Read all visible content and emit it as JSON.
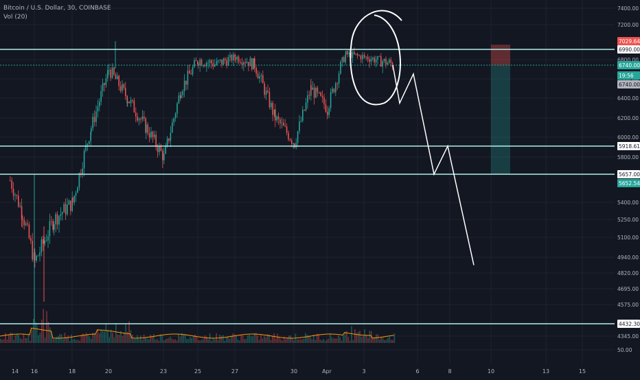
{
  "header": {
    "title": "Bitcoin / U.S. Dollar, 30, COINBASE",
    "indicator": "Vol (20)"
  },
  "colors": {
    "background": "#131722",
    "grid": "#1f2330",
    "up": "#26a69a",
    "down": "#ef5350",
    "levelLine": "#b2f0ea",
    "drawing": "#ffffff",
    "volumeMA": "#ff9800",
    "axisText": "#b2b5be"
  },
  "price_axis": {
    "ticks": [
      "7400.00",
      "7200.00",
      "6990.00",
      "6800.00",
      "6600.00",
      "6400.00",
      "6200.00",
      "6000.00",
      "5800.00",
      "5400.00",
      "5250.00",
      "5100.00",
      "4940.00",
      "4820.00",
      "4695.00",
      "4575.00",
      "4345.00",
      "50.00"
    ]
  },
  "price_labels": [
    {
      "text": "7029.64",
      "bg": "#ef5350",
      "fg": "#ffffff"
    },
    {
      "text": "6990.00",
      "bg": "#ffffff",
      "fg": "#131722"
    },
    {
      "text": "6740.00",
      "bg": "#26a69a",
      "fg": "#ffffff"
    },
    {
      "text": "19:56",
      "bg": "#26a69a",
      "fg": "#ffffff"
    },
    {
      "text": "6740.00",
      "bg": "#b2b5be",
      "fg": "#131722"
    },
    {
      "text": "5918.61",
      "bg": "#ffffff",
      "fg": "#131722"
    },
    {
      "text": "5657.00",
      "bg": "#ffffff",
      "fg": "#131722"
    },
    {
      "text": "5652.54",
      "bg": "#26a69a",
      "fg": "#ffffff"
    },
    {
      "text": "4432.30",
      "bg": "#ffffff",
      "fg": "#131722"
    }
  ],
  "time_axis": {
    "ticks": [
      "14",
      "16",
      "18",
      "20",
      "23",
      "25",
      "27",
      "30",
      "Apr",
      "3",
      "6",
      "8",
      "10",
      "13",
      "15"
    ]
  },
  "chart_data": {
    "type": "candlestick",
    "symbol": "Bitcoin / U.S. Dollar",
    "interval": "30",
    "exchange": "COINBASE",
    "levels": [
      6990,
      5918.61,
      5657,
      4432.3
    ],
    "price_labels": [
      7029.64,
      6990,
      6740,
      6740,
      5918.61,
      5657,
      5652.54,
      4432.3
    ],
    "position_tool": {
      "stop": 7029.64,
      "entry": 6740,
      "target": 5657
    },
    "price_path": [
      {
        "day": "14",
        "price": 5600
      },
      {
        "day": "15",
        "price": 5300
      },
      {
        "day": "16",
        "price": 4900
      },
      {
        "day": "17",
        "price": 5250
      },
      {
        "day": "18",
        "price": 5400
      },
      {
        "day": "19",
        "price": 6100
      },
      {
        "day": "20",
        "price": 6700
      },
      {
        "day": "21",
        "price": 6400
      },
      {
        "day": "22",
        "price": 6100
      },
      {
        "day": "23",
        "price": 5800
      },
      {
        "day": "24",
        "price": 6500
      },
      {
        "day": "25",
        "price": 6800
      },
      {
        "day": "26",
        "price": 6750
      },
      {
        "day": "27",
        "price": 6850
      },
      {
        "day": "28",
        "price": 6750
      },
      {
        "day": "29",
        "price": 6200
      },
      {
        "day": "30",
        "price": 5950
      },
      {
        "day": "31",
        "price": 6500
      },
      {
        "day": "Apr",
        "price": 6300
      },
      {
        "day": "2",
        "price": 6900
      },
      {
        "day": "3",
        "price": 6850
      },
      {
        "day": "4",
        "price": 6750
      }
    ],
    "projection_path": [
      6740,
      6350,
      6650,
      5657,
      5918.61,
      4880
    ],
    "has_volume": true,
    "grid": true
  }
}
